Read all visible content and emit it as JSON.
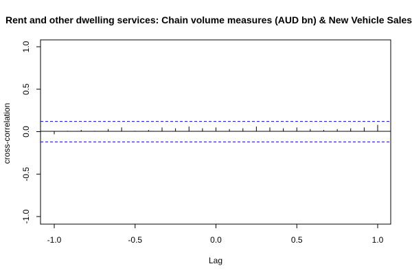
{
  "chart_data": {
    "type": "bar",
    "title": "Rent and other dwelling services: Chain volume measures (AUD bn) & New Vehicle Sales",
    "xlabel": "Lag",
    "ylabel": "cross-correlation",
    "xlim": [
      -1.0,
      1.0
    ],
    "ylim": [
      -1.0,
      1.0
    ],
    "x_ticks": [
      "-1.0",
      "-0.5",
      "0.0",
      "0.5",
      "1.0"
    ],
    "y_ticks": [
      "-1.0",
      "-0.5",
      "0.0",
      "0.5",
      "1.0"
    ],
    "confidence_bound": 0.12,
    "grid": false,
    "lag": [
      -1.0,
      -0.9167,
      -0.8333,
      -0.75,
      -0.6667,
      -0.5833,
      -0.5,
      -0.4167,
      -0.3333,
      -0.25,
      -0.1667,
      -0.0833,
      0.0,
      0.0833,
      0.1667,
      0.25,
      0.3333,
      0.4167,
      0.5,
      0.5833,
      0.6667,
      0.75,
      0.8333,
      0.9167,
      1.0
    ],
    "acf": [
      -0.03,
      0.01,
      0.02,
      0.01,
      0.03,
      0.05,
      0.01,
      0.02,
      0.05,
      0.04,
      0.06,
      0.04,
      0.05,
      0.03,
      0.04,
      0.06,
      0.05,
      0.04,
      0.05,
      0.03,
      0.02,
      0.03,
      0.04,
      0.05,
      0.08
    ]
  },
  "colors": {
    "bars": "#000000",
    "bounds": "#0000ff",
    "frame": "#000000"
  }
}
